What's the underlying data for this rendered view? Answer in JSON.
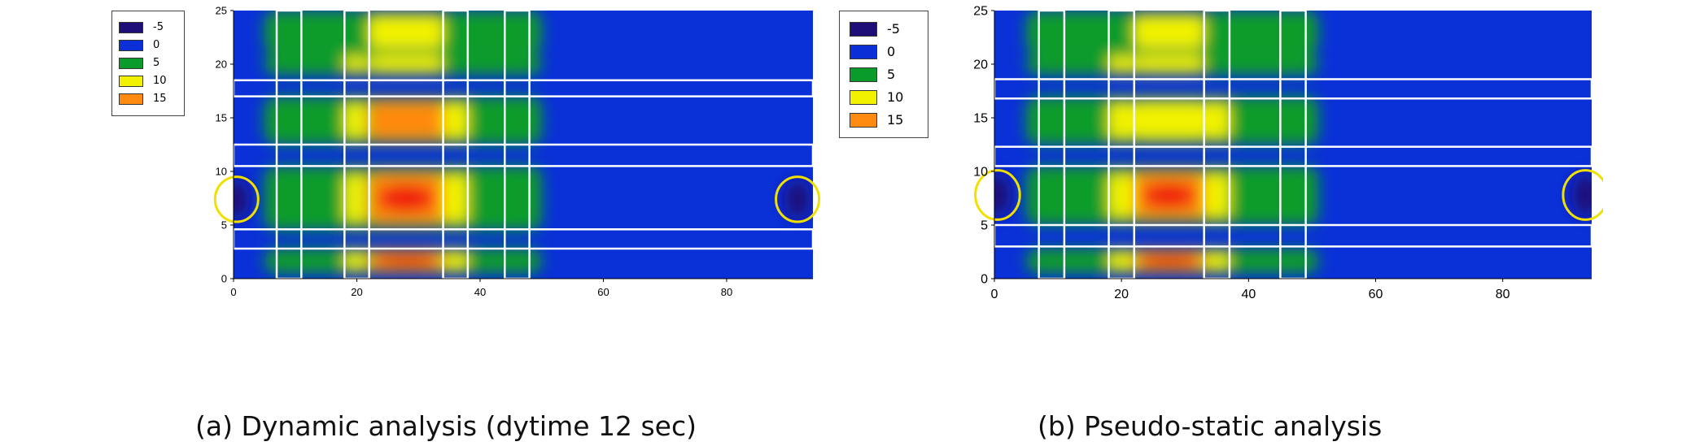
{
  "colors": {
    "levels": [
      "#1e0f78",
      "#0a2fd6",
      "#0a9c2a",
      "#f2f200",
      "#ff8a10"
    ],
    "background": "#0a30d8",
    "ellipse": "#f0e000",
    "outline": "#ffffff"
  },
  "chart_data": [
    {
      "type": "heatmap",
      "caption": "(a) Dynamic analysis (dytime 12 sec)",
      "xlim": [
        0,
        94
      ],
      "ylim": [
        0,
        25
      ],
      "xticks": [
        "0",
        "20",
        "40",
        "60",
        "80"
      ],
      "yticks": [
        "0",
        "5",
        "10",
        "15",
        "20",
        "25"
      ],
      "legend": {
        "position": "left-outside",
        "entries": [
          {
            "label": "-5",
            "color": "#1e0f78"
          },
          {
            "label": "0",
            "color": "#0a2fd6"
          },
          {
            "label": "5",
            "color": "#0a9c2a"
          },
          {
            "label": "10",
            "color": "#f2f200"
          },
          {
            "label": "15",
            "color": "#ff8a10"
          }
        ]
      },
      "bands": [
        {
          "y": [
            21,
            25
          ],
          "peak": 11
        },
        {
          "y": [
            19,
            21
          ],
          "peak": 12
        },
        {
          "y": [
            12.5,
            17
          ],
          "peak": 14
        },
        {
          "y": [
            4.5,
            10.5
          ],
          "peak": 16
        },
        {
          "y": [
            0.5,
            2.8
          ],
          "peak": 15
        }
      ],
      "columns": [
        {
          "x": [
            7,
            10
          ],
          "weight": 0.55
        },
        {
          "x": [
            18,
            21.5
          ],
          "weight": 0.75
        },
        {
          "x": [
            22,
            34
          ],
          "weight": 1.0
        },
        {
          "x": [
            34,
            38
          ],
          "weight": 0.7
        },
        {
          "x": [
            44,
            48
          ],
          "weight": 0.5
        }
      ],
      "horizontal_boxes": [
        [
          17,
          18.5
        ],
        [
          10.5,
          12.5
        ],
        [
          2.8,
          4.6
        ]
      ],
      "vertical_boxes": [
        [
          7,
          11
        ],
        [
          18,
          22
        ],
        [
          34,
          38
        ],
        [
          44,
          48
        ]
      ],
      "box_extent": {
        "x": [
          0,
          94
        ],
        "y": [
          0,
          25
        ]
      },
      "ellipses": [
        {
          "x": 0.5,
          "y": 7.4,
          "rx": 3.5,
          "ry": 2.1
        },
        {
          "x": 91.5,
          "y": 7.4,
          "rx": 3.5,
          "ry": 2.1
        }
      ]
    },
    {
      "type": "heatmap",
      "caption": "(b) Pseudo-static analysis",
      "xlim": [
        0,
        94
      ],
      "ylim": [
        0,
        25
      ],
      "xticks": [
        "0",
        "20",
        "40",
        "60",
        "80"
      ],
      "yticks": [
        "0",
        "5",
        "10",
        "15",
        "20",
        "25"
      ],
      "legend": {
        "position": "left-outside",
        "entries": [
          {
            "label": "-5",
            "color": "#1e0f78"
          },
          {
            "label": "0",
            "color": "#0a2fd6"
          },
          {
            "label": "5",
            "color": "#0a9c2a"
          },
          {
            "label": "10",
            "color": "#f2f200"
          },
          {
            "label": "15",
            "color": "#ff8a10"
          }
        ]
      },
      "bands": [
        {
          "y": [
            21,
            25
          ],
          "peak": 11
        },
        {
          "y": [
            19,
            21
          ],
          "peak": 12
        },
        {
          "y": [
            12.5,
            17
          ],
          "peak": 13
        },
        {
          "y": [
            5,
            10.5
          ],
          "peak": 16
        },
        {
          "y": [
            0.5,
            2.8
          ],
          "peak": 15
        }
      ],
      "columns": [
        {
          "x": [
            7,
            11
          ],
          "weight": 0.55
        },
        {
          "x": [
            18,
            22
          ],
          "weight": 0.75
        },
        {
          "x": [
            22,
            33
          ],
          "weight": 1.0
        },
        {
          "x": [
            33,
            37
          ],
          "weight": 0.7
        },
        {
          "x": [
            45,
            49
          ],
          "weight": 0.55
        }
      ],
      "horizontal_boxes": [
        [
          16.8,
          18.6
        ],
        [
          10.5,
          12.3
        ],
        [
          3,
          5
        ]
      ],
      "vertical_boxes": [
        [
          7,
          11
        ],
        [
          18,
          22
        ],
        [
          33,
          37
        ],
        [
          45,
          49
        ]
      ],
      "box_extent": {
        "x": [
          0,
          94
        ],
        "y": [
          0,
          25
        ]
      },
      "ellipses": [
        {
          "x": 0.5,
          "y": 7.8,
          "rx": 3.5,
          "ry": 2.3
        },
        {
          "x": 93,
          "y": 7.8,
          "rx": 3.5,
          "ry": 2.3
        }
      ]
    }
  ]
}
